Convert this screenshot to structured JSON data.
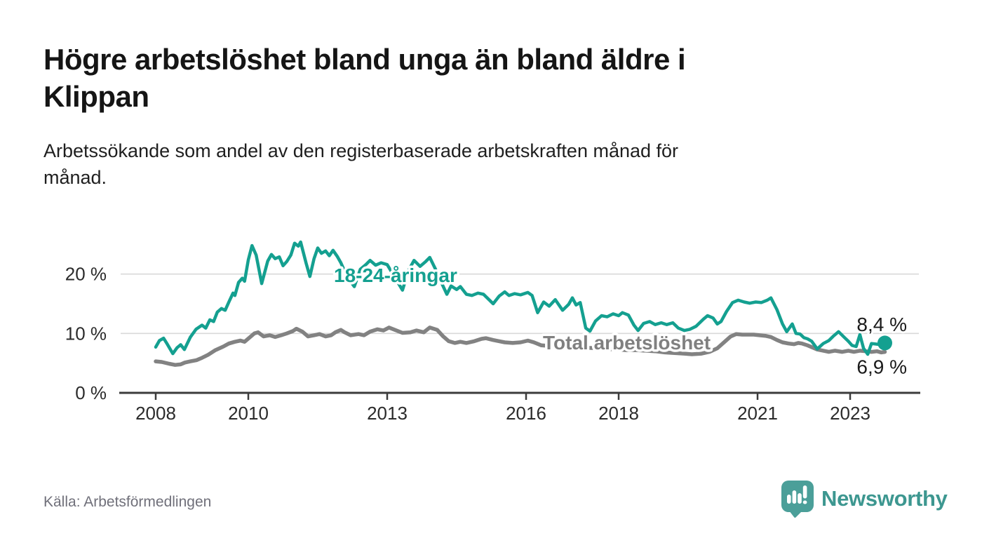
{
  "header": {
    "title": "Högre arbetslöshet bland unga än bland äldre i\nKlippan",
    "subtitle": "Arbetssökande som andel av den registerbaserade arbetskraften månad för\nmånad."
  },
  "footer": {
    "source": "Källa: Arbetsförmedlingen",
    "brand": "Newsworthy",
    "brand_color": "#3d9790",
    "brand_icon": "speech-bubble-bar-chart"
  },
  "chart_data": {
    "type": "line",
    "title": "Högre arbetslöshet bland unga än bland äldre i Klippan",
    "xlabel": "",
    "ylabel": "",
    "ylim": [
      0,
      27
    ],
    "x_domain": [
      2008.0,
      2023.75
    ],
    "grid": "horizontal-only",
    "colors": {
      "youth": "#14a090",
      "total": "#828282",
      "gridline": "#d9d9d9",
      "axis": "#3b3b3b"
    },
    "x_axis": {
      "ticks": [
        {
          "value": 2008,
          "label": "2008"
        },
        {
          "value": 2010,
          "label": "2010"
        },
        {
          "value": 2013,
          "label": "2013"
        },
        {
          "value": 2016,
          "label": "2016"
        },
        {
          "value": 2018,
          "label": "2018"
        },
        {
          "value": 2021,
          "label": "2021"
        },
        {
          "value": 2023,
          "label": "2023"
        }
      ]
    },
    "y_axis": {
      "ticks": [
        {
          "value": 0,
          "label": "0 %"
        },
        {
          "value": 10,
          "label": "10 %"
        },
        {
          "value": 20,
          "label": "20 %"
        }
      ]
    },
    "series": [
      {
        "name": "18-24-åringar",
        "color": "#14a090",
        "end_label": "8,4 %",
        "end_value": 8.4,
        "points": [
          [
            2008.0,
            7.7
          ],
          [
            2008.08,
            8.8
          ],
          [
            2008.17,
            9.2
          ],
          [
            2008.25,
            8.2
          ],
          [
            2008.37,
            6.6
          ],
          [
            2008.46,
            7.6
          ],
          [
            2008.54,
            8.1
          ],
          [
            2008.62,
            7.3
          ],
          [
            2008.75,
            9.4
          ],
          [
            2008.87,
            10.7
          ],
          [
            2009.0,
            11.4
          ],
          [
            2009.08,
            10.9
          ],
          [
            2009.17,
            12.3
          ],
          [
            2009.25,
            12.0
          ],
          [
            2009.33,
            13.6
          ],
          [
            2009.42,
            14.2
          ],
          [
            2009.5,
            13.9
          ],
          [
            2009.58,
            15.3
          ],
          [
            2009.67,
            16.8
          ],
          [
            2009.71,
            16.4
          ],
          [
            2009.79,
            18.6
          ],
          [
            2009.87,
            19.3
          ],
          [
            2009.92,
            18.8
          ],
          [
            2010.0,
            22.4
          ],
          [
            2010.08,
            24.8
          ],
          [
            2010.17,
            23.2
          ],
          [
            2010.29,
            18.4
          ],
          [
            2010.42,
            22.2
          ],
          [
            2010.5,
            23.3
          ],
          [
            2010.58,
            22.6
          ],
          [
            2010.67,
            22.9
          ],
          [
            2010.75,
            21.4
          ],
          [
            2010.83,
            22.1
          ],
          [
            2010.92,
            23.2
          ],
          [
            2011.0,
            25.2
          ],
          [
            2011.08,
            24.7
          ],
          [
            2011.13,
            25.4
          ],
          [
            2011.25,
            21.8
          ],
          [
            2011.33,
            19.6
          ],
          [
            2011.42,
            22.6
          ],
          [
            2011.5,
            24.4
          ],
          [
            2011.58,
            23.5
          ],
          [
            2011.67,
            23.9
          ],
          [
            2011.75,
            23.1
          ],
          [
            2011.83,
            24.0
          ],
          [
            2011.92,
            23.0
          ],
          [
            2012.0,
            21.9
          ],
          [
            2012.13,
            19.6
          ],
          [
            2012.29,
            17.9
          ],
          [
            2012.42,
            20.8
          ],
          [
            2012.54,
            21.6
          ],
          [
            2012.63,
            22.3
          ],
          [
            2012.75,
            21.5
          ],
          [
            2012.87,
            21.9
          ],
          [
            2013.0,
            21.6
          ],
          [
            2013.13,
            19.9
          ],
          [
            2013.33,
            17.3
          ],
          [
            2013.46,
            20.6
          ],
          [
            2013.58,
            22.3
          ],
          [
            2013.71,
            21.3
          ],
          [
            2013.83,
            22.1
          ],
          [
            2013.92,
            22.8
          ],
          [
            2014.04,
            20.9
          ],
          [
            2014.17,
            18.6
          ],
          [
            2014.29,
            16.6
          ],
          [
            2014.38,
            18.0
          ],
          [
            2014.5,
            17.4
          ],
          [
            2014.58,
            17.9
          ],
          [
            2014.71,
            16.6
          ],
          [
            2014.83,
            16.4
          ],
          [
            2014.96,
            16.8
          ],
          [
            2015.08,
            16.6
          ],
          [
            2015.21,
            15.6
          ],
          [
            2015.29,
            15.0
          ],
          [
            2015.42,
            16.3
          ],
          [
            2015.54,
            17.0
          ],
          [
            2015.63,
            16.4
          ],
          [
            2015.75,
            16.7
          ],
          [
            2015.88,
            16.5
          ],
          [
            2016.04,
            16.9
          ],
          [
            2016.13,
            16.4
          ],
          [
            2016.25,
            13.5
          ],
          [
            2016.38,
            15.3
          ],
          [
            2016.5,
            14.6
          ],
          [
            2016.63,
            15.7
          ],
          [
            2016.79,
            13.9
          ],
          [
            2016.92,
            14.9
          ],
          [
            2017.0,
            16.0
          ],
          [
            2017.08,
            14.8
          ],
          [
            2017.17,
            15.2
          ],
          [
            2017.29,
            10.9
          ],
          [
            2017.38,
            10.4
          ],
          [
            2017.5,
            12.1
          ],
          [
            2017.63,
            13.0
          ],
          [
            2017.75,
            12.8
          ],
          [
            2017.88,
            13.3
          ],
          [
            2018.0,
            13.0
          ],
          [
            2018.08,
            13.5
          ],
          [
            2018.21,
            13.1
          ],
          [
            2018.33,
            11.4
          ],
          [
            2018.42,
            10.5
          ],
          [
            2018.54,
            11.7
          ],
          [
            2018.67,
            12.0
          ],
          [
            2018.79,
            11.5
          ],
          [
            2018.92,
            11.8
          ],
          [
            2019.04,
            11.5
          ],
          [
            2019.17,
            11.8
          ],
          [
            2019.29,
            10.9
          ],
          [
            2019.42,
            10.5
          ],
          [
            2019.54,
            10.7
          ],
          [
            2019.67,
            11.2
          ],
          [
            2019.83,
            12.4
          ],
          [
            2019.92,
            13.0
          ],
          [
            2020.04,
            12.6
          ],
          [
            2020.13,
            11.6
          ],
          [
            2020.21,
            12.0
          ],
          [
            2020.33,
            13.7
          ],
          [
            2020.46,
            15.2
          ],
          [
            2020.58,
            15.6
          ],
          [
            2020.71,
            15.3
          ],
          [
            2020.83,
            15.1
          ],
          [
            2020.96,
            15.3
          ],
          [
            2021.08,
            15.2
          ],
          [
            2021.21,
            15.6
          ],
          [
            2021.29,
            16.0
          ],
          [
            2021.42,
            14.0
          ],
          [
            2021.54,
            11.6
          ],
          [
            2021.63,
            10.3
          ],
          [
            2021.75,
            11.6
          ],
          [
            2021.83,
            10.0
          ],
          [
            2021.92,
            9.9
          ],
          [
            2022.0,
            9.3
          ],
          [
            2022.08,
            9.1
          ],
          [
            2022.17,
            8.7
          ],
          [
            2022.29,
            7.4
          ],
          [
            2022.42,
            8.3
          ],
          [
            2022.54,
            8.8
          ],
          [
            2022.63,
            9.5
          ],
          [
            2022.75,
            10.3
          ],
          [
            2022.88,
            9.3
          ],
          [
            2022.96,
            8.7
          ],
          [
            2023.04,
            8.0
          ],
          [
            2023.13,
            7.8
          ],
          [
            2023.21,
            9.8
          ],
          [
            2023.29,
            7.5
          ],
          [
            2023.38,
            6.5
          ],
          [
            2023.46,
            8.3
          ],
          [
            2023.58,
            8.2
          ],
          [
            2023.67,
            8.1
          ],
          [
            2023.75,
            8.4
          ]
        ]
      },
      {
        "name": "Total arbetslöshet",
        "color": "#828282",
        "end_label": "6,9 %",
        "end_value": 6.9,
        "points": [
          [
            2008.0,
            5.3
          ],
          [
            2008.13,
            5.2
          ],
          [
            2008.29,
            4.9
          ],
          [
            2008.42,
            4.7
          ],
          [
            2008.54,
            4.8
          ],
          [
            2008.63,
            5.1
          ],
          [
            2008.75,
            5.3
          ],
          [
            2008.88,
            5.5
          ],
          [
            2009.0,
            5.9
          ],
          [
            2009.13,
            6.4
          ],
          [
            2009.29,
            7.2
          ],
          [
            2009.46,
            7.8
          ],
          [
            2009.58,
            8.3
          ],
          [
            2009.71,
            8.6
          ],
          [
            2009.83,
            8.8
          ],
          [
            2009.92,
            8.6
          ],
          [
            2010.04,
            9.4
          ],
          [
            2010.13,
            10.0
          ],
          [
            2010.21,
            10.2
          ],
          [
            2010.33,
            9.5
          ],
          [
            2010.46,
            9.7
          ],
          [
            2010.58,
            9.4
          ],
          [
            2010.71,
            9.7
          ],
          [
            2010.83,
            10.0
          ],
          [
            2010.96,
            10.4
          ],
          [
            2011.04,
            10.8
          ],
          [
            2011.17,
            10.3
          ],
          [
            2011.29,
            9.5
          ],
          [
            2011.42,
            9.7
          ],
          [
            2011.54,
            9.9
          ],
          [
            2011.67,
            9.5
          ],
          [
            2011.79,
            9.7
          ],
          [
            2011.88,
            10.2
          ],
          [
            2012.0,
            10.6
          ],
          [
            2012.08,
            10.2
          ],
          [
            2012.21,
            9.7
          ],
          [
            2012.38,
            9.9
          ],
          [
            2012.5,
            9.7
          ],
          [
            2012.63,
            10.3
          ],
          [
            2012.79,
            10.7
          ],
          [
            2012.92,
            10.5
          ],
          [
            2013.04,
            11.0
          ],
          [
            2013.17,
            10.6
          ],
          [
            2013.33,
            10.1
          ],
          [
            2013.5,
            10.2
          ],
          [
            2013.63,
            10.5
          ],
          [
            2013.79,
            10.2
          ],
          [
            2013.92,
            11.0
          ],
          [
            2014.08,
            10.6
          ],
          [
            2014.21,
            9.5
          ],
          [
            2014.33,
            8.7
          ],
          [
            2014.46,
            8.4
          ],
          [
            2014.58,
            8.6
          ],
          [
            2014.71,
            8.4
          ],
          [
            2014.88,
            8.7
          ],
          [
            2015.04,
            9.1
          ],
          [
            2015.13,
            9.2
          ],
          [
            2015.29,
            8.9
          ],
          [
            2015.42,
            8.7
          ],
          [
            2015.54,
            8.5
          ],
          [
            2015.71,
            8.4
          ],
          [
            2015.88,
            8.5
          ],
          [
            2016.04,
            8.8
          ],
          [
            2016.17,
            8.5
          ],
          [
            2016.33,
            8.0
          ],
          [
            2016.5,
            7.9
          ],
          [
            2016.71,
            7.8
          ],
          [
            2016.92,
            7.9
          ],
          [
            2017.13,
            7.7
          ],
          [
            2017.33,
            7.6
          ],
          [
            2017.54,
            7.5
          ],
          [
            2017.75,
            7.4
          ],
          [
            2017.96,
            7.3
          ],
          [
            2018.17,
            7.2
          ],
          [
            2018.38,
            7.2
          ],
          [
            2018.58,
            7.1
          ],
          [
            2018.79,
            7.0
          ],
          [
            2019.0,
            6.8
          ],
          [
            2019.21,
            6.7
          ],
          [
            2019.42,
            6.6
          ],
          [
            2019.58,
            6.5
          ],
          [
            2019.79,
            6.6
          ],
          [
            2019.96,
            6.9
          ],
          [
            2020.13,
            7.5
          ],
          [
            2020.29,
            8.6
          ],
          [
            2020.42,
            9.5
          ],
          [
            2020.54,
            9.9
          ],
          [
            2020.67,
            9.8
          ],
          [
            2020.79,
            9.8
          ],
          [
            2020.92,
            9.8
          ],
          [
            2021.04,
            9.7
          ],
          [
            2021.17,
            9.6
          ],
          [
            2021.29,
            9.4
          ],
          [
            2021.42,
            8.9
          ],
          [
            2021.54,
            8.5
          ],
          [
            2021.67,
            8.3
          ],
          [
            2021.79,
            8.2
          ],
          [
            2021.88,
            8.4
          ],
          [
            2021.96,
            8.3
          ],
          [
            2022.08,
            8.0
          ],
          [
            2022.17,
            7.7
          ],
          [
            2022.29,
            7.3
          ],
          [
            2022.42,
            7.1
          ],
          [
            2022.54,
            6.9
          ],
          [
            2022.67,
            7.1
          ],
          [
            2022.83,
            6.9
          ],
          [
            2022.96,
            7.1
          ],
          [
            2023.08,
            6.9
          ],
          [
            2023.21,
            7.1
          ],
          [
            2023.33,
            7.0
          ],
          [
            2023.46,
            6.9
          ],
          [
            2023.58,
            7.0
          ],
          [
            2023.67,
            6.8
          ],
          [
            2023.75,
            6.9
          ]
        ]
      }
    ],
    "legend": "inline-labels-on-lines"
  }
}
